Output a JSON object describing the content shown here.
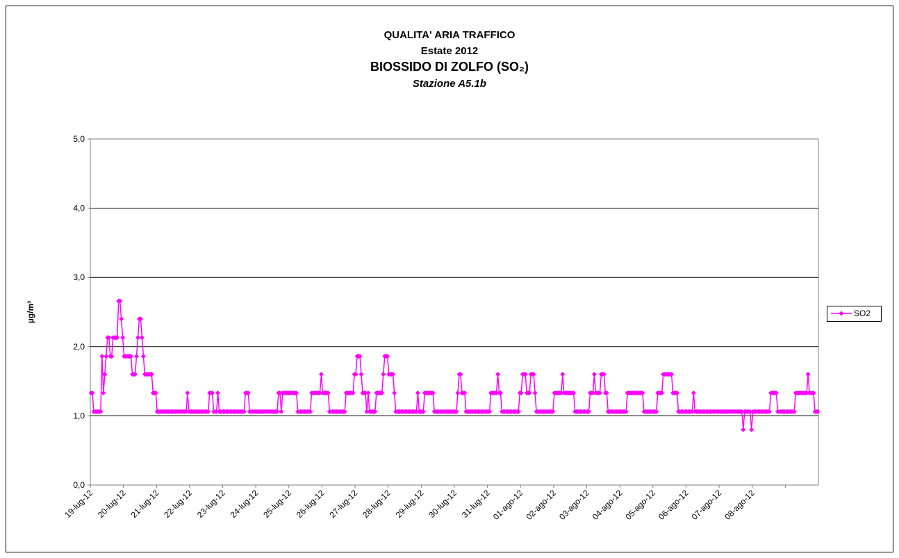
{
  "chart_data": {
    "type": "line",
    "title": "QUALITA' ARIA TRAFFICO",
    "subtitle": "Estate 2012",
    "pollutant": "BIOSSIDO DI ZOLFO (SO₂)",
    "station": "Stazione A5.1b",
    "y_label": "µg/m³",
    "categories": [
      "19-lug-12",
      "20-lug-12",
      "21-lug-12",
      "22-lug-12",
      "23-lug-12",
      "24-lug-12",
      "25-lug-12",
      "26-lug-12",
      "27-lug-12",
      "28-lug-12",
      "29-lug-12",
      "30-lug-12",
      "31-lug-12",
      "01-ago-12",
      "02-ago-12",
      "03-ago-12",
      "04-ago-12",
      "05-ago-12",
      "06-ago-12",
      "07-ago-12",
      "08-ago-12",
      null
    ],
    "ylim": [
      0,
      5
    ],
    "yticks": [
      {
        "value": 0,
        "label": "0,0"
      },
      {
        "value": 1,
        "label": "1,0"
      },
      {
        "value": 2,
        "label": "2,0"
      },
      {
        "value": 3,
        "label": "3,0"
      },
      {
        "value": 4,
        "label": "4,0"
      },
      {
        "value": 5,
        "label": "5,0"
      }
    ],
    "grid": true,
    "legend": "right",
    "series": [
      {
        "name": "SO2",
        "color": "#ff00ff",
        "values": [
          [
            1.33,
            1.33,
            1.06,
            1.06,
            1.06,
            1.06,
            1.06,
            1.06,
            1.86,
            1.33,
            1.6,
            1.86,
            2.13,
            2.13,
            1.86,
            1.86,
            2.13,
            2.13,
            2.13,
            2.13,
            2.66,
            2.66,
            2.4,
            2.13
          ],
          [
            1.86,
            1.86,
            1.86,
            1.86,
            1.86,
            1.86,
            1.6,
            1.6,
            1.6,
            1.86,
            2.13,
            2.4,
            2.4,
            2.13,
            1.86,
            1.6,
            1.6,
            1.6,
            1.6,
            1.6,
            1.6,
            1.33,
            1.33,
            1.33
          ],
          [
            1.06,
            1.06,
            1.06,
            1.06,
            1.06,
            1.06,
            1.06,
            1.06,
            1.06,
            1.06,
            1.06,
            1.06,
            1.06,
            1.06,
            1.06,
            1.06,
            1.06,
            1.06,
            1.06,
            1.06,
            1.06,
            1.06,
            1.33,
            1.06
          ],
          [
            1.06,
            1.06,
            1.06,
            1.06,
            1.06,
            1.06,
            1.06,
            1.06,
            1.06,
            1.06,
            1.06,
            1.06,
            1.06,
            1.06,
            1.33,
            1.33,
            1.33,
            1.06,
            1.06,
            1.06,
            1.33,
            1.06,
            1.06,
            1.06
          ],
          [
            1.06,
            1.06,
            1.06,
            1.06,
            1.06,
            1.06,
            1.06,
            1.06,
            1.06,
            1.06,
            1.06,
            1.06,
            1.06,
            1.06,
            1.06,
            1.06,
            1.33,
            1.33,
            1.33,
            1.06,
            1.06,
            1.06,
            1.06,
            1.06
          ],
          [
            1.06,
            1.06,
            1.06,
            1.06,
            1.06,
            1.06,
            1.06,
            1.06,
            1.06,
            1.06,
            1.06,
            1.06,
            1.06,
            1.06,
            1.06,
            1.06,
            1.33,
            1.33,
            1.06,
            1.33,
            1.33,
            1.33,
            1.33,
            1.33
          ],
          [
            1.33,
            1.33,
            1.33,
            1.33,
            1.33,
            1.33,
            1.06,
            1.06,
            1.06,
            1.06,
            1.06,
            1.06,
            1.06,
            1.06,
            1.06,
            1.06,
            1.33,
            1.33,
            1.33,
            1.33,
            1.33,
            1.33,
            1.33,
            1.6
          ],
          [
            1.33,
            1.33,
            1.33,
            1.33,
            1.33,
            1.06,
            1.06,
            1.06,
            1.06,
            1.06,
            1.06,
            1.06,
            1.06,
            1.06,
            1.06,
            1.06,
            1.06,
            1.33,
            1.33,
            1.33,
            1.33,
            1.33,
            1.33,
            1.6
          ],
          [
            1.6,
            1.86,
            1.86,
            1.86,
            1.6,
            1.33,
            1.33,
            1.33,
            1.06,
            1.33,
            1.06,
            1.06,
            1.06,
            1.06,
            1.06,
            1.33,
            1.33,
            1.33,
            1.33,
            1.33,
            1.6,
            1.86,
            1.86,
            1.86
          ],
          [
            1.6,
            1.6,
            1.6,
            1.6,
            1.33,
            1.06,
            1.06,
            1.06,
            1.06,
            1.06,
            1.06,
            1.06,
            1.06,
            1.06,
            1.06,
            1.06,
            1.06,
            1.06,
            1.06,
            1.06,
            1.06,
            1.33,
            1.06,
            1.06
          ],
          [
            1.06,
            1.06,
            1.33,
            1.33,
            1.33,
            1.33,
            1.33,
            1.33,
            1.33,
            1.06,
            1.06,
            1.06,
            1.06,
            1.06,
            1.06,
            1.06,
            1.06,
            1.06,
            1.06,
            1.06,
            1.06,
            1.06,
            1.06,
            1.06
          ],
          [
            1.06,
            1.06,
            1.33,
            1.6,
            1.6,
            1.33,
            1.33,
            1.33,
            1.06,
            1.06,
            1.06,
            1.06,
            1.06,
            1.06,
            1.06,
            1.06,
            1.06,
            1.06,
            1.06,
            1.06,
            1.06,
            1.06,
            1.06,
            1.06
          ],
          [
            1.06,
            1.06,
            1.33,
            1.33,
            1.33,
            1.33,
            1.33,
            1.6,
            1.33,
            1.33,
            1.06,
            1.06,
            1.06,
            1.06,
            1.06,
            1.06,
            1.06,
            1.06,
            1.06,
            1.06,
            1.06,
            1.06,
            1.06,
            1.33
          ],
          [
            1.33,
            1.6,
            1.6,
            1.6,
            1.33,
            1.33,
            1.33,
            1.6,
            1.6,
            1.6,
            1.33,
            1.06,
            1.06,
            1.06,
            1.06,
            1.06,
            1.06,
            1.06,
            1.06,
            1.06,
            1.06,
            1.06,
            1.06,
            1.06
          ],
          [
            1.33,
            1.33,
            1.33,
            1.33,
            1.33,
            1.33,
            1.6,
            1.33,
            1.33,
            1.33,
            1.33,
            1.33,
            1.33,
            1.33,
            1.33,
            1.06,
            1.06,
            1.06,
            1.06,
            1.06,
            1.06,
            1.06,
            1.06,
            1.06
          ],
          [
            1.06,
            1.06,
            1.33,
            1.33,
            1.33,
            1.6,
            1.33,
            1.33,
            1.33,
            1.33,
            1.6,
            1.6,
            1.6,
            1.33,
            1.33,
            1.06,
            1.06,
            1.06,
            1.06,
            1.06,
            1.06,
            1.06,
            1.06,
            1.06
          ],
          [
            1.06,
            1.06,
            1.06,
            1.06,
            1.06,
            1.33,
            1.33,
            1.33,
            1.33,
            1.33,
            1.33,
            1.33,
            1.33,
            1.33,
            1.33,
            1.33,
            1.33,
            1.06,
            1.06,
            1.06,
            1.06,
            1.06,
            1.06,
            1.06
          ],
          [
            1.06,
            1.06,
            1.06,
            1.33,
            1.33,
            1.33,
            1.33,
            1.6,
            1.6,
            1.6,
            1.6,
            1.6,
            1.6,
            1.6,
            1.33,
            1.33,
            1.33,
            1.33,
            1.06,
            1.06,
            1.06,
            1.06,
            1.06,
            1.06
          ],
          [
            1.06,
            1.06,
            1.06,
            1.06,
            1.06,
            1.33,
            1.06,
            1.06,
            1.06,
            1.06,
            1.06,
            1.06,
            1.06,
            1.06,
            1.06,
            1.06,
            1.06,
            1.06,
            1.06,
            1.06,
            1.06,
            1.06,
            1.06,
            1.06
          ],
          [
            1.06,
            1.06,
            1.06,
            1.06,
            1.06,
            1.06,
            1.06,
            1.06,
            1.06,
            1.06,
            1.06,
            1.06,
            1.06,
            1.06,
            1.06,
            1.06,
            1.06,
            0.8,
            1.06,
            1.06,
            1.06,
            1.06,
            1.06,
            0.8
          ],
          [
            1.06,
            1.06,
            1.06,
            1.06,
            1.06,
            1.06,
            1.06,
            1.06,
            1.06,
            1.06,
            1.06,
            1.06,
            1.06,
            1.33,
            1.33,
            1.33,
            1.33,
            1.33,
            1.06,
            1.06,
            1.06,
            1.06,
            1.06,
            1.06
          ],
          [
            1.06,
            1.06,
            1.06,
            1.06,
            1.06,
            1.06,
            1.06,
            1.33,
            1.33,
            1.33,
            1.33,
            1.33,
            1.33,
            1.33,
            1.33,
            1.33,
            1.6,
            1.33,
            1.33,
            1.33,
            1.33,
            1.06,
            1.06,
            1.06
          ]
        ]
      }
    ]
  }
}
